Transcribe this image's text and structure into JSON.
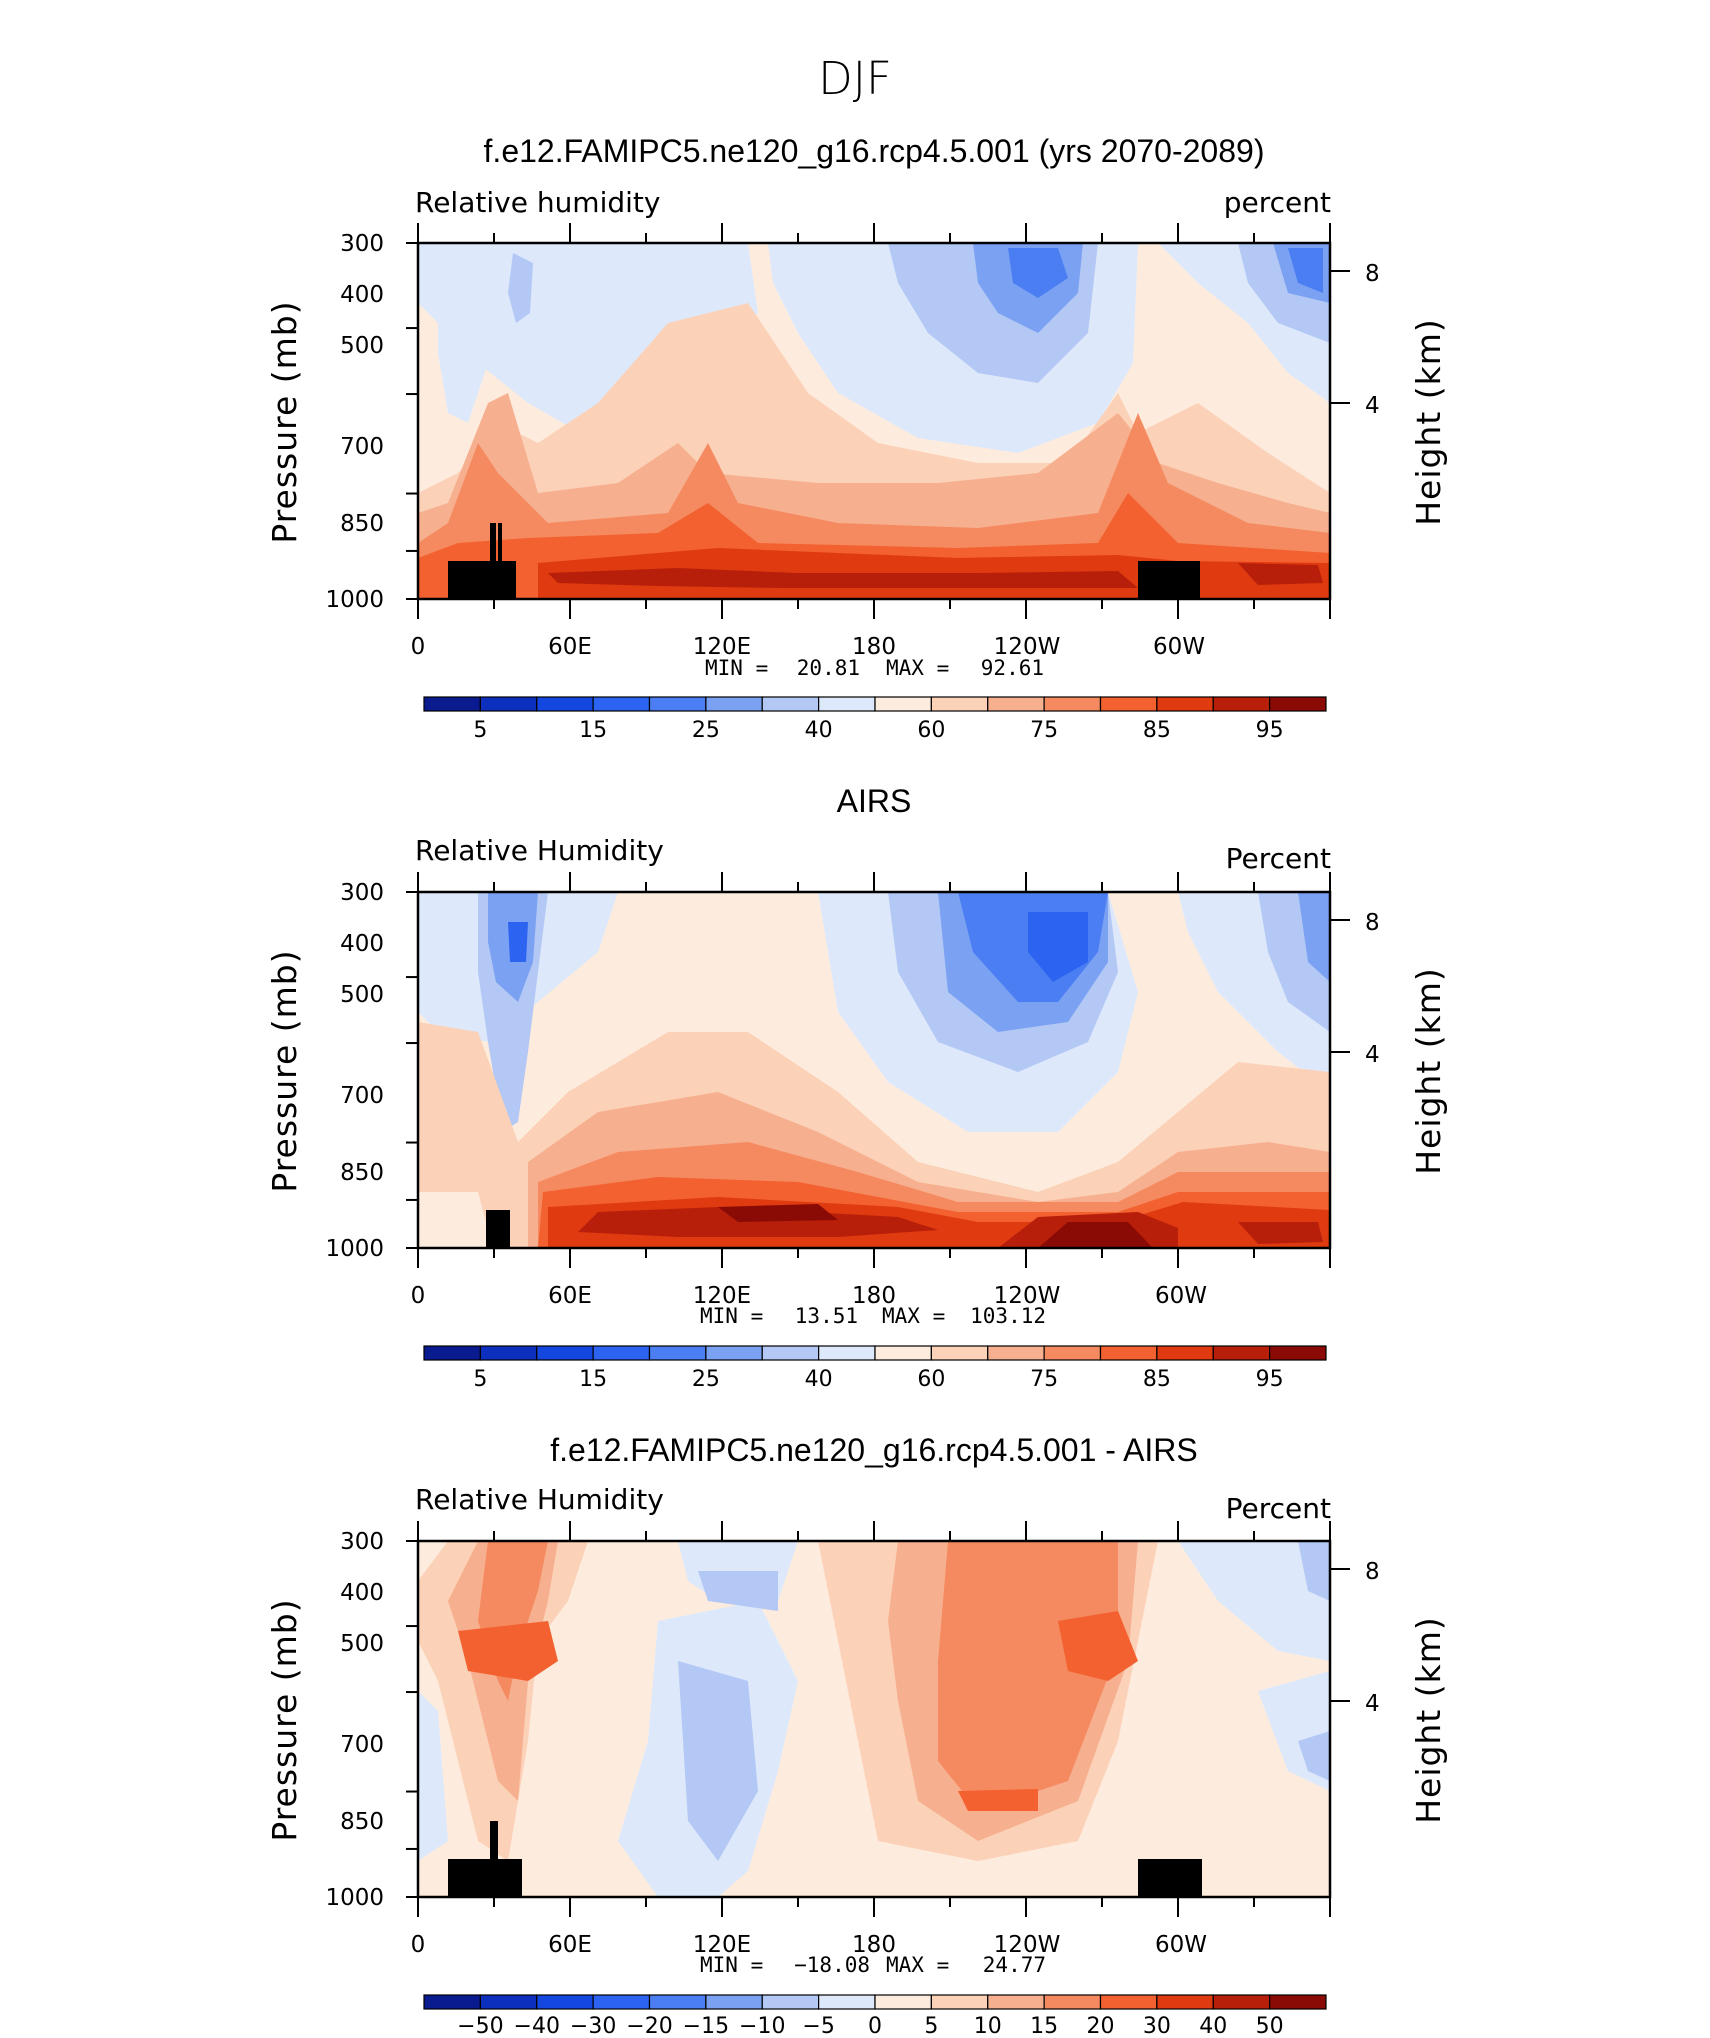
{
  "page_title": "DJF",
  "colors": {
    "rh": [
      "#0a1a8f",
      "#0d2fbe",
      "#1446e0",
      "#2c63f0",
      "#4a7ef2",
      "#7ba1f3",
      "#b3c8f4",
      "#dde9fb",
      "#fdecde",
      "#fbd1b8",
      "#f7b08f",
      "#f58a60",
      "#f2612f",
      "#e03a10",
      "#b81f0a",
      "#8a0a06"
    ],
    "diff": [
      "#0a1a8f",
      "#0d2fbe",
      "#1446e0",
      "#2c63f0",
      "#4a7ef2",
      "#7ba1f3",
      "#b3c8f4",
      "#dde9fb",
      "#fdecde",
      "#fbd1b8",
      "#f7b08f",
      "#f58a60",
      "#f2612f",
      "#e03a10",
      "#b81f0a",
      "#8a0a06"
    ]
  },
  "chart_data": [
    {
      "type": "heatmap",
      "title": "f.e12.FAMIPC5.ne120_g16.rcp4.5.001 (yrs 2070-2089)",
      "left_label": "Relative humidity",
      "right_label": "percent",
      "ylabel": "Pressure (mb)",
      "y2label": "Height (km)",
      "x_ticks": [
        "0",
        "60E",
        "120E",
        "180",
        "120W",
        "60W"
      ],
      "y_ticks": [
        "300",
        "400",
        "500",
        "700",
        "850",
        "1000"
      ],
      "y2_ticks": [
        "8",
        "4"
      ],
      "min_label": "MIN =",
      "min_value": "20.81",
      "max_label": "MAX =",
      "max_value": "92.61",
      "colorbar": {
        "palette": "rh",
        "labels": [
          "5",
          "15",
          "25",
          "40",
          "60",
          "75",
          "85",
          "95"
        ]
      },
      "ylim": [
        1000,
        300
      ],
      "xlim": [
        0,
        360
      ]
    },
    {
      "type": "heatmap",
      "title": "AIRS",
      "left_label": "Relative Humidity",
      "right_label": "Percent",
      "ylabel": "Pressure (mb)",
      "y2label": "Height (km)",
      "x_ticks": [
        "0",
        "60E",
        "120E",
        "180",
        "120W",
        "60W"
      ],
      "y_ticks": [
        "300",
        "400",
        "500",
        "700",
        "850",
        "1000"
      ],
      "y2_ticks": [
        "8",
        "4"
      ],
      "min_label": "MIN =",
      "min_value": "13.51",
      "max_label": "MAX =",
      "max_value": "103.12",
      "colorbar": {
        "palette": "rh",
        "labels": [
          "5",
          "15",
          "25",
          "40",
          "60",
          "75",
          "85",
          "95"
        ]
      },
      "ylim": [
        1000,
        300
      ],
      "xlim": [
        0,
        360
      ]
    },
    {
      "type": "heatmap",
      "title": "f.e12.FAMIPC5.ne120_g16.rcp4.5.001 - AIRS",
      "left_label": "Relative Humidity",
      "right_label": "Percent",
      "ylabel": "Pressure (mb)",
      "y2label": "Height (km)",
      "x_ticks": [
        "0",
        "60E",
        "120E",
        "180",
        "120W",
        "60W"
      ],
      "y_ticks": [
        "300",
        "400",
        "500",
        "700",
        "850",
        "1000"
      ],
      "y2_ticks": [
        "8",
        "4"
      ],
      "min_label": "MIN =",
      "min_value": "−18.08",
      "max_label": "MAX =",
      "max_value": "24.77",
      "colorbar": {
        "palette": "diff",
        "labels": [
          "−50",
          "−40",
          "−30",
          "−20",
          "−15",
          "−10",
          "−5",
          "0",
          "5",
          "10",
          "15",
          "20",
          "30",
          "40",
          "50"
        ]
      },
      "ylim": [
        1000,
        300
      ],
      "xlim": [
        0,
        360
      ]
    }
  ]
}
